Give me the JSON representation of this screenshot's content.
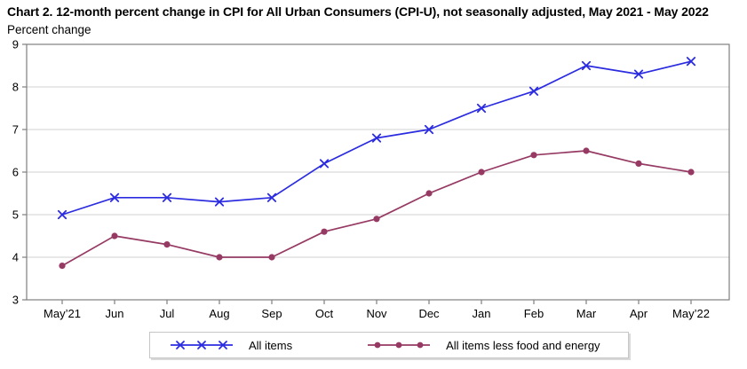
{
  "chart": {
    "title": "Chart 2. 12-month percent change in CPI for All Urban Consumers (CPI-U), not seasonally adjusted, May 2021 - May 2022",
    "unit_label": "Percent change"
  },
  "chart_data": {
    "type": "line",
    "categories": [
      "May’21",
      "Jun",
      "Jul",
      "Aug",
      "Sep",
      "Oct",
      "Nov",
      "Dec",
      "Jan",
      "Feb",
      "Mar",
      "Apr",
      "May’22"
    ],
    "series": [
      {
        "name": "All items",
        "marker": "x",
        "color": "#2B2BE0",
        "values": [
          5.0,
          5.4,
          5.4,
          5.3,
          5.4,
          6.2,
          6.8,
          7.0,
          7.5,
          7.9,
          8.5,
          8.3,
          8.6
        ]
      },
      {
        "name": "All items less food and energy",
        "marker": "circle",
        "color": "#963A64",
        "values": [
          3.8,
          4.5,
          4.3,
          4.0,
          4.0,
          4.6,
          4.9,
          5.5,
          6.0,
          6.4,
          6.5,
          6.2,
          6.0
        ]
      }
    ],
    "title": "Chart 2. 12-month percent change in CPI for All Urban Consumers (CPI-U), not seasonally adjusted, May 2021 - May 2022",
    "xlabel": "",
    "ylabel": "Percent change",
    "ylim": [
      3,
      9
    ],
    "ytick_step": 1,
    "grid": true,
    "legend_position": "bottom",
    "colors": {
      "gridline": "#D9D9D9",
      "border": "#7F7F7F",
      "text": "#000000",
      "background": "#FFFFFF"
    }
  }
}
